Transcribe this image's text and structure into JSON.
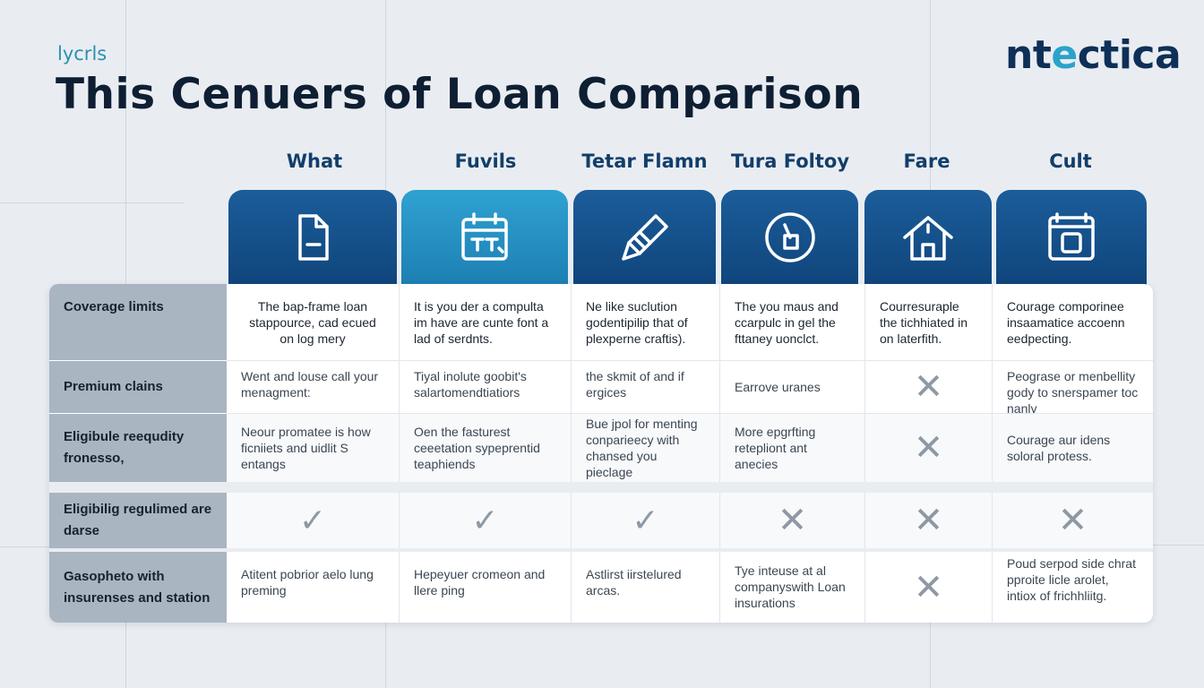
{
  "header": {
    "subtitle": "lycrls",
    "title": "This Cenuers of Loan Comparison",
    "brand_part1": "nt",
    "brand_part2": "e",
    "brand_part3": "ctica"
  },
  "colors": {
    "navy": "#10457c",
    "teal": "#2993c4",
    "title": "#0e1f33",
    "row_label_bg": "#a9b5c1"
  },
  "columns": [
    {
      "label": "What",
      "icon": "document-icon"
    },
    {
      "label": "Fuvils",
      "icon": "calendar-icon"
    },
    {
      "label": "Tetar Flamn",
      "icon": "pen-icon"
    },
    {
      "label": "Tura Foltoy",
      "icon": "gauge-icon"
    },
    {
      "label": "Fare",
      "icon": "house-icon"
    },
    {
      "label": "Cult",
      "icon": "calculator-icon"
    }
  ],
  "rows": [
    {
      "label": "Coverage limits",
      "cells": [
        "The bap-frame loan stappource, cad ecued on log mery",
        "It is you der a compulta im have are cunte font a lad of serdnts.",
        "Ne like suclution godentipilip that of plexperne craftis).",
        "The you maus and ccarpulc in gel the fttaney uonclct.",
        "Courresuraple the tichhiated in on laterfith.",
        "Courage comporinee insaamatice accoenn eedpecting."
      ]
    },
    {
      "label": "Premium clains",
      "cells": [
        "Went and louse call your menagment:",
        "Tiyal inolute goobit's salartomendtiatiors",
        "the skmit of and if ergices",
        "Earrove uranes",
        "✕",
        "Peograse or menbellity gody to snerspamer toc nanly"
      ]
    },
    {
      "label": "Eligibule reequdity fronesso,",
      "cells": [
        "Neour promatee is how ficniiets and uidlit S entangs",
        "Oen the fasturest ceeetation sypeprentid teaphiends",
        "Bue jpol for menting conparieecy with chansed you pieclage",
        "More epgrfting retepliont ant anecies",
        "✕",
        "Courage aur idens soloral protess."
      ]
    },
    {
      "label": "Eligibilig regulimed are darse",
      "cells": [
        "✓",
        "✓",
        "✓",
        "✕",
        "✕",
        "✕"
      ]
    },
    {
      "label": "Gasopheto with insurenses and station",
      "cells": [
        "Atitent pobrior aelo lung preming",
        "Hepeyuer cromeon and llere ping",
        "Astlirst iirstelured arcas.",
        "Tye inteuse at al companyswith Loan insurations",
        "✕",
        "Poud serpod side chrat pproite licle arolet, intiox of frichhliitg."
      ]
    }
  ]
}
